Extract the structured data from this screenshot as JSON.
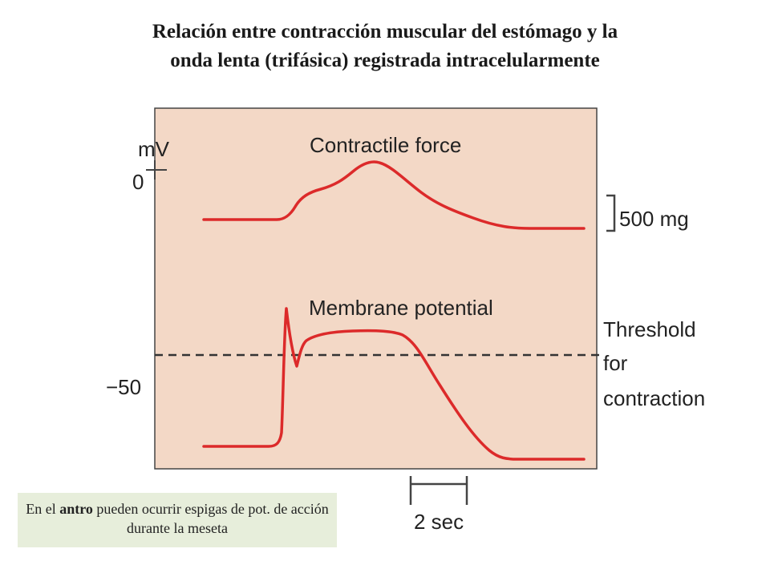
{
  "title": {
    "line1": "Relación entre contracción muscular del estómago y la",
    "line2": "onda lenta (trifásica) registrada intracelularmente"
  },
  "diagram": {
    "y_axis_unit": "mV",
    "tick_zero": "0",
    "tick_minus50": "−50",
    "contractile_force_label": "Contractile force",
    "membrane_potential_label": "Membrane potential",
    "scale_force_label": "500 mg",
    "threshold_label_lines": [
      "Threshold",
      "for",
      "contraction"
    ],
    "time_scale_label": "2 sec",
    "colors": {
      "panel": "#f3d8c6",
      "trace": "#dc2a2a",
      "axis": "#444444",
      "threshold_line": "#333333"
    }
  },
  "note": {
    "part1": "En el ",
    "bold": "antro",
    "part2": " pueden ocurrir  espigas de pot. de acción durante la meseta"
  }
}
